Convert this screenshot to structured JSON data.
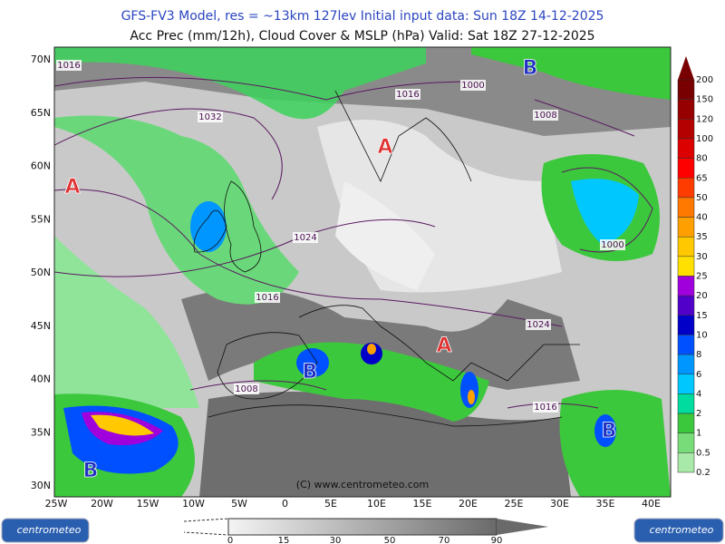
{
  "header": {
    "line1": "GFS-FV3 Model, res = ~13km 127lev    Initial input data: Sun 18Z 14-12-2025",
    "line2": "Acc Prec (mm/12h), Cloud Cover & MSLP (hPa)  Valid: Sat 18Z 27-12-2025"
  },
  "map": {
    "lat_labels": [
      "70N",
      "65N",
      "60N",
      "55N",
      "50N",
      "45N",
      "40N",
      "35N",
      "30N"
    ],
    "lon_labels": [
      "25W",
      "20W",
      "15W",
      "10W",
      "5W",
      "0",
      "5E",
      "10E",
      "15E",
      "20E",
      "25E",
      "30E",
      "35E",
      "40E"
    ],
    "isobar_labels": [
      "1016",
      "1032",
      "1016",
      "1000",
      "1008",
      "1024",
      "1000",
      "1016",
      "1024",
      "1008",
      "1016"
    ],
    "pressure_centers": [
      "A",
      "A",
      "A",
      "B",
      "B",
      "B",
      "B"
    ],
    "credit": "(C) www.centrometeo.com"
  },
  "precip_legend": {
    "labels": [
      "200",
      "150",
      "120",
      "100",
      "80",
      "65",
      "50",
      "40",
      "35",
      "30",
      "25",
      "20",
      "15",
      "10",
      "8",
      "6",
      "4",
      "2",
      "1",
      "0.5",
      "0.2"
    ],
    "colors": [
      "#780000",
      "#960000",
      "#b40000",
      "#dc0000",
      "#ff0000",
      "#ff3c00",
      "#ff7800",
      "#ffa000",
      "#ffc800",
      "#ffe000",
      "#a000dc",
      "#5000c8",
      "#0000c8",
      "#0050ff",
      "#0096ff",
      "#00c8ff",
      "#00dca0",
      "#3cc83c",
      "#78dc78",
      "#a8e8a8"
    ]
  },
  "cloud_legend": {
    "labels": [
      "0",
      "15",
      "30",
      "50",
      "70",
      "90"
    ]
  },
  "logos": [
    "centrometeo",
    "centrometeo"
  ]
}
